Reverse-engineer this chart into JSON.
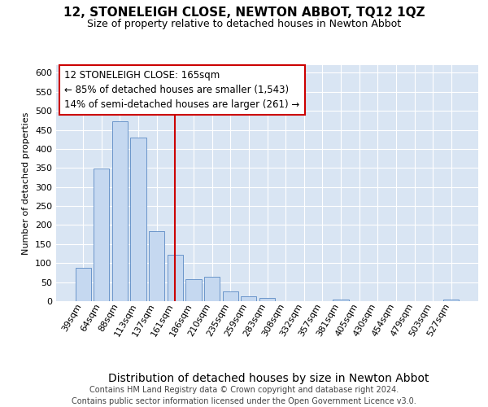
{
  "title": "12, STONELEIGH CLOSE, NEWTON ABBOT, TQ12 1QZ",
  "subtitle": "Size of property relative to detached houses in Newton Abbot",
  "xlabel": "Distribution of detached houses by size in Newton Abbot",
  "ylabel": "Number of detached properties",
  "categories": [
    "39sqm",
    "64sqm",
    "88sqm",
    "113sqm",
    "137sqm",
    "161sqm",
    "186sqm",
    "210sqm",
    "235sqm",
    "259sqm",
    "283sqm",
    "308sqm",
    "332sqm",
    "357sqm",
    "381sqm",
    "405sqm",
    "430sqm",
    "454sqm",
    "479sqm",
    "503sqm",
    "527sqm"
  ],
  "values": [
    88,
    348,
    472,
    430,
    183,
    122,
    57,
    65,
    25,
    12,
    8,
    0,
    0,
    0,
    5,
    0,
    0,
    0,
    0,
    0,
    5
  ],
  "bar_color": "#c5d8f0",
  "bar_edge_color": "#5b8ac4",
  "vline_x_idx": 5,
  "vline_color": "#cc0000",
  "annotation_line1": "12 STONELEIGH CLOSE: 165sqm",
  "annotation_line2": "← 85% of detached houses are smaller (1,543)",
  "annotation_line3": "14% of semi-detached houses are larger (261) →",
  "annotation_box_edge_color": "#cc0000",
  "ylim_max": 620,
  "yticks": [
    0,
    50,
    100,
    150,
    200,
    250,
    300,
    350,
    400,
    450,
    500,
    550,
    600
  ],
  "footer_line1": "Contains HM Land Registry data © Crown copyright and database right 2024.",
  "footer_line2": "Contains public sector information licensed under the Open Government Licence v3.0.",
  "grid_color": "#ffffff",
  "bg_color": "#d9e5f3",
  "title_fontsize": 11,
  "subtitle_fontsize": 9,
  "ylabel_fontsize": 8,
  "xlabel_fontsize": 10,
  "tick_fontsize": 8,
  "annotation_fontsize": 8.5,
  "footer_fontsize": 7
}
